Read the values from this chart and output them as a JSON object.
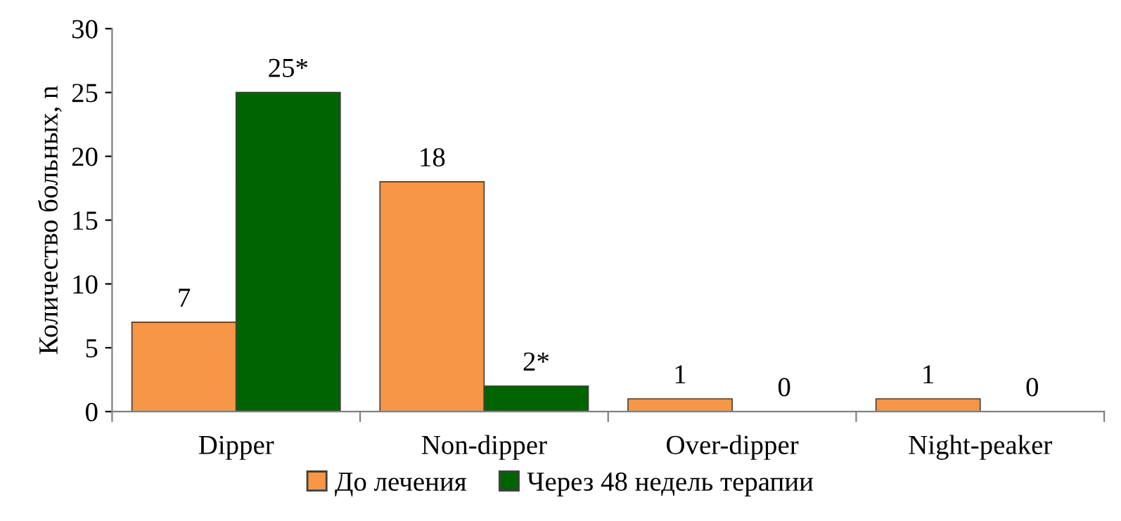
{
  "chart_data": {
    "type": "bar",
    "ylabel": "Количество больных, n",
    "categories": [
      "Dipper",
      "Non-dipper",
      "Over-dipper",
      "Night-peaker"
    ],
    "series": [
      {
        "name": "До лечения",
        "color": "#f79646",
        "values": [
          7,
          18,
          1,
          1
        ],
        "value_labels": [
          "7",
          "18",
          "1",
          "1"
        ]
      },
      {
        "name": "Через 48 недель терапии",
        "color": "#006400",
        "values": [
          25,
          2,
          0,
          0
        ],
        "value_labels": [
          "25*",
          "2*",
          "0",
          "0"
        ]
      }
    ],
    "ylim": [
      0,
      30
    ],
    "yticks": [
      0,
      5,
      10,
      15,
      20,
      25,
      30
    ],
    "grid": false,
    "legend": "bottom"
  }
}
